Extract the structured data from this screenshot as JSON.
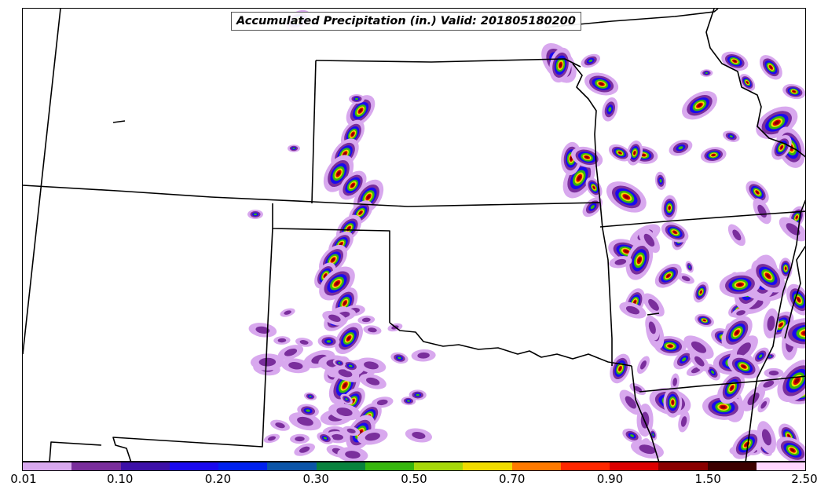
{
  "title": "Accumulated Precipitation (in.) Valid: 201805180200",
  "colorbar": {
    "colors": [
      "#d8a8ee",
      "#7a2e9c",
      "#3d10a8",
      "#1a0aee",
      "#0022ee",
      "#0b55a8",
      "#08823e",
      "#36b60e",
      "#a6d80a",
      "#f0dc00",
      "#ff7a00",
      "#ff2800",
      "#dc0000",
      "#8a0000",
      "#3c0000",
      "#ffd6ff"
    ],
    "tick_labels": [
      "0.01",
      "0.10",
      "0.20",
      "0.30",
      "0.50",
      "0.70",
      "0.90",
      "1.50",
      "2.50"
    ]
  }
}
